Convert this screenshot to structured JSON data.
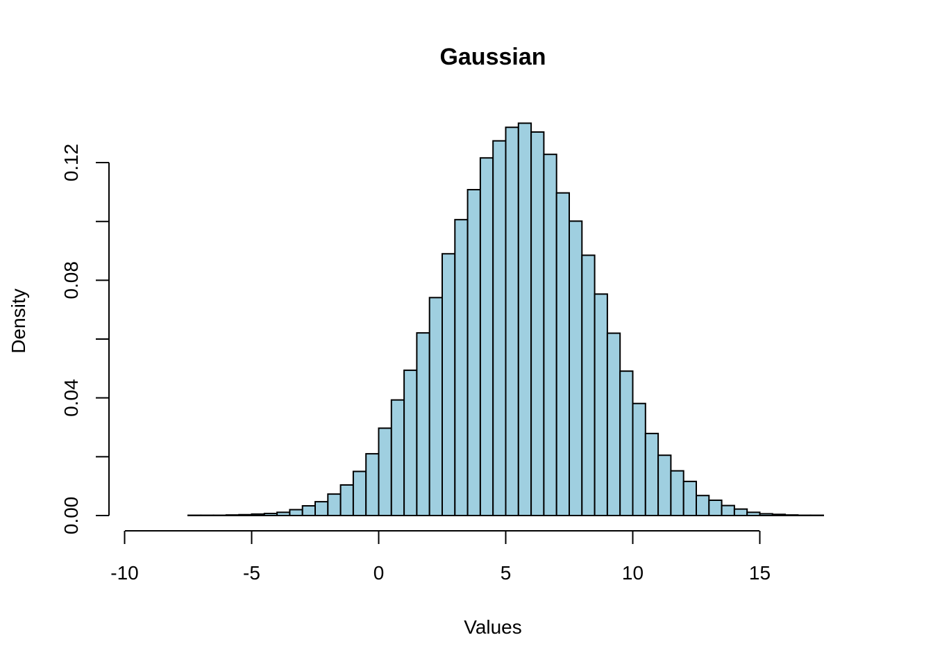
{
  "chart_data": {
    "type": "bar",
    "title": "Gaussian",
    "xlabel": "Values",
    "ylabel": "Density",
    "bin_width": 0.5,
    "bin_start": -9.5,
    "x_ticks": [
      -10,
      -5,
      0,
      5,
      10,
      15
    ],
    "x_tick_labels": [
      "-10",
      "-5",
      "0",
      "5",
      "10",
      "15"
    ],
    "y_ticks": [
      0,
      0.02,
      0.04,
      0.06,
      0.08,
      0.1,
      0.12
    ],
    "y_tick_labels": [
      "0.00",
      "",
      "0.04",
      "",
      "0.08",
      "",
      "0.12"
    ],
    "xlim": [
      -10,
      18.5
    ],
    "ylim": [
      0,
      0.13
    ],
    "bar_color": "#9fcfe0",
    "values": [
      0.0,
      0.0,
      0.0,
      0.0,
      0.0001,
      0.0001,
      0.0001,
      0.0002,
      0.0003,
      0.0005,
      0.0007,
      0.0011,
      0.002,
      0.0033,
      0.0047,
      0.0073,
      0.0104,
      0.015,
      0.021,
      0.0297,
      0.0393,
      0.0494,
      0.0621,
      0.0741,
      0.089,
      0.1006,
      0.1108,
      0.1216,
      0.1274,
      0.132,
      0.1334,
      0.1304,
      0.1228,
      0.1097,
      0.1001,
      0.0885,
      0.0753,
      0.062,
      0.0491,
      0.0381,
      0.0279,
      0.0205,
      0.0152,
      0.0116,
      0.0068,
      0.0052,
      0.0034,
      0.0022,
      0.0011,
      0.0006,
      0.0004,
      0.0002,
      0.0001,
      0.0001,
      0.0,
      0.0
    ]
  }
}
